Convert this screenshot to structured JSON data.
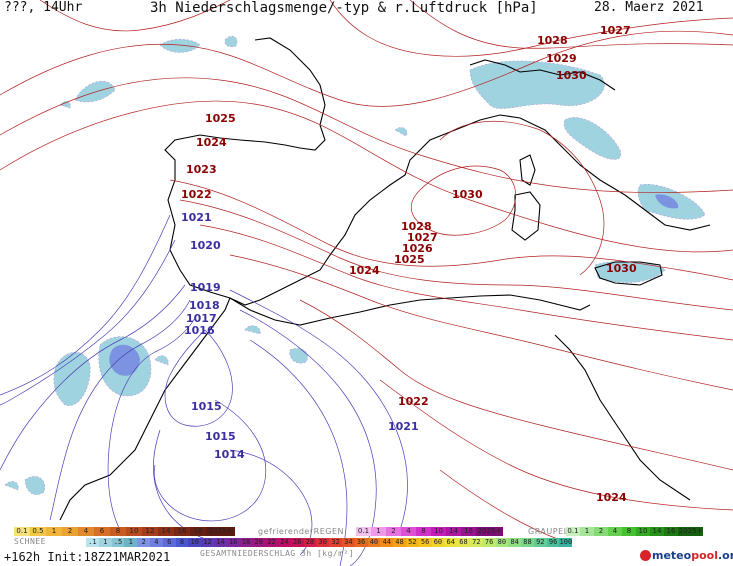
{
  "header": {
    "left": "???, 14Uhr",
    "title": "3h Niederschlagsmenge/-typ & r.Luftdruck [hPa]",
    "date": "28. Maerz 2021"
  },
  "isobars": {
    "red_labels": [
      "1027",
      "1028",
      "1029",
      "1030",
      "1025",
      "1024",
      "1023",
      "1022",
      "1030",
      "1028",
      "1027",
      "1026",
      "1025",
      "1024",
      "1030",
      "1022",
      "1024"
    ],
    "blue_labels": [
      "1021",
      "1020",
      "1019",
      "1018",
      "1017",
      "1016",
      "1015",
      "1015",
      "1014",
      "1021"
    ]
  },
  "legend": {
    "schnee_label": "SCHNEE",
    "schnee_values": [
      "0.1",
      "0.5",
      "1",
      "2",
      "4",
      "6",
      "8",
      "10",
      "12",
      "14",
      "16",
      "18",
      "2025+"
    ],
    "regen_label": "gefrierenderREGEN",
    "regen_values": [
      "0.1",
      "1",
      "2",
      "4",
      "8",
      "10",
      "14",
      "16",
      "2025+"
    ],
    "graupel_label": "GRAUPEL",
    "graupel_values": [
      "0.1",
      "1",
      "2",
      "4",
      "8",
      "10",
      "14",
      "16",
      "2025+"
    ],
    "total_values": [
      ".1",
      "1",
      ".5",
      "1",
      "2",
      "4",
      "6",
      "8",
      "10",
      "12",
      "14",
      "16",
      "18",
      "20",
      "22",
      "24",
      "26",
      "28",
      "30",
      "32",
      "34",
      "36",
      "40",
      "44",
      "48",
      "52",
      "56",
      "60",
      "64",
      "68",
      "72",
      "76",
      "80",
      "84",
      "88",
      "92",
      "96",
      "100"
    ],
    "total_label": "GESAMTNIEDERSCHLAG 3h [kg/m²]"
  },
  "footer": {
    "run": "+162h Init:18Z21MAR2021",
    "brand_a": "meteo",
    "brand_b": "pool",
    "brand_c": ".org"
  },
  "colors": {
    "isobar_high": "#b22222",
    "isobar_low": "#4a3fb5",
    "precip_light": "#9fd3df",
    "precip_blue": "#6f7ee0",
    "coast": "#000000"
  }
}
